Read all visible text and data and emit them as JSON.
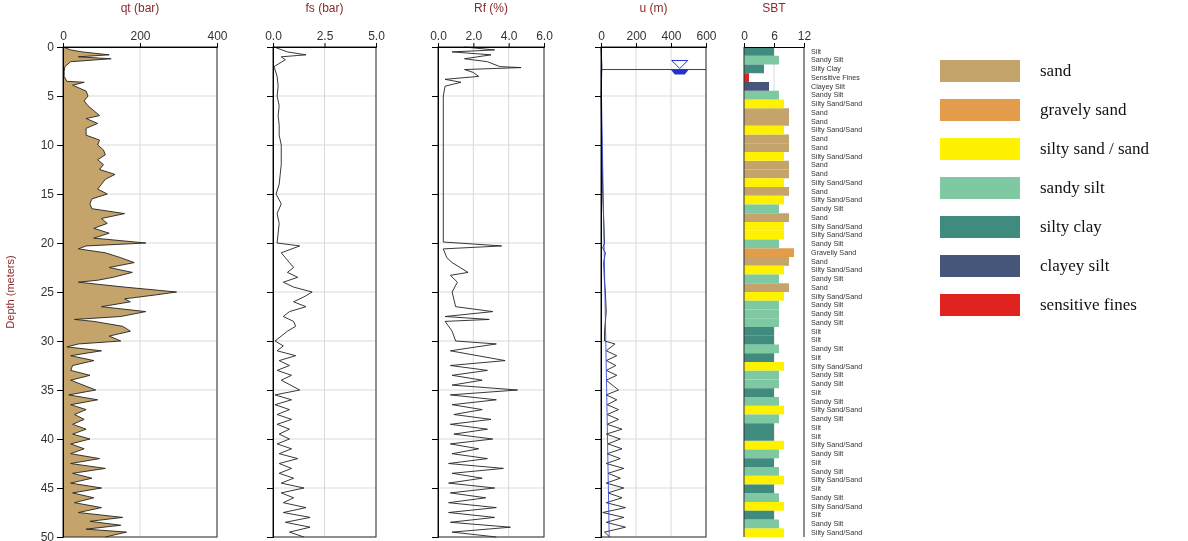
{
  "chart_data": [
    {
      "type": "line",
      "title": "qt (bar)",
      "ylabel": "Depth (meters)",
      "xlim": [
        0,
        400
      ],
      "xticks": [
        0,
        200,
        400
      ],
      "ylim": [
        50,
        0
      ],
      "yticks": [
        0,
        5,
        10,
        15,
        20,
        25,
        30,
        35,
        40,
        45,
        50
      ],
      "grid": true,
      "series": [
        {
          "color": "#222222",
          "x": [
            0,
            20,
            50,
            120,
            40,
            125,
            20,
            5,
            3,
            3,
            10,
            55,
            25,
            60,
            65,
            55,
            65,
            80,
            95,
            60,
            90,
            60,
            60,
            95,
            90,
            105,
            110,
            90,
            105,
            95,
            135,
            110,
            100,
            90,
            115,
            75,
            70,
            75,
            160,
            100,
            115,
            80,
            120,
            80,
            215,
            60,
            40,
            110,
            150,
            185,
            120,
            180,
            130,
            90,
            40,
            160,
            295,
            240,
            160,
            175,
            100,
            215,
            150,
            30,
            80,
            155,
            175,
            120,
            150,
            40,
            10,
            100,
            20,
            80,
            25,
            20,
            70,
            20,
            85,
            15,
            90,
            20,
            60,
            30,
            55,
            25,
            60,
            25,
            70,
            20,
            55,
            20,
            95,
            20,
            110,
            25,
            75,
            20,
            100,
            25,
            80,
            30,
            100,
            40,
            155,
            70,
            150,
            60,
            165,
            110
          ],
          "values": [
            0,
            0.3,
            0.5,
            0.8,
            1,
            1.2,
            1.5,
            2,
            2.5,
            3,
            3.5,
            3.6,
            3.9,
            4.5,
            5,
            5.5,
            6,
            6.5,
            7,
            7.3,
            7.8,
            8.3,
            9,
            9.5,
            10,
            10.5,
            11,
            11.5,
            12,
            12.5,
            13,
            13.5,
            14,
            14.5,
            15,
            15.5,
            16,
            16.5,
            17,
            17.5,
            18,
            18.5,
            19,
            19.5,
            20,
            20.3,
            20.6,
            21,
            21.5,
            22,
            22.5,
            23,
            23.5,
            23.8,
            24,
            24.5,
            25,
            25.3,
            25.7,
            26,
            26.5,
            27,
            27.5,
            27.8,
            28,
            28.5,
            29,
            29.5,
            30,
            30.3,
            30.6,
            31,
            31.5,
            32,
            32.5,
            33,
            33.5,
            34,
            35,
            35.5,
            36,
            36.5,
            37,
            37.5,
            38,
            38.5,
            39,
            39.5,
            40,
            40.5,
            41,
            41.5,
            42,
            42.5,
            43,
            43.5,
            44,
            44.5,
            45,
            45.5,
            46,
            46.5,
            47,
            47.5,
            48,
            48.4,
            48.8,
            49.2,
            49.5,
            50
          ]
        }
      ]
    },
    {
      "type": "line",
      "title": "fs (bar)",
      "xlim": [
        0,
        5
      ],
      "xticks": [
        {
          "value": 0,
          "label": "0.0"
        },
        {
          "value": 2.5,
          "label": "2.5"
        },
        {
          "value": 5,
          "label": "5.0"
        }
      ],
      "ylim": [
        50,
        0
      ],
      "yticks": [
        0,
        5,
        10,
        15,
        20,
        25,
        30,
        35,
        40,
        45,
        50
      ],
      "tick_labels": "x",
      "grid": true,
      "series": [
        {
          "color": "#222222",
          "x": [
            0.05,
            0.7,
            1.6,
            0.4,
            0.6,
            0.05,
            0.2,
            0.25,
            0.2,
            0.3,
            0.25,
            0.3,
            0.3,
            0.4,
            0.4,
            0.4,
            0.35,
            0.3,
            0.15,
            0.4,
            0.2,
            0.3,
            0.25,
            0.2,
            1.3,
            0.4,
            0.6,
            0.8,
            1.0,
            0.7,
            1.2,
            0.5,
            1.0,
            1.9,
            1.5,
            1.0,
            1.6,
            0.8,
            0.5,
            1.0,
            1.1,
            0.7,
            0.1,
            0.5,
            0.2,
            1.1,
            0.3,
            0.8,
            0.2,
            0.9,
            0.4,
            1.3,
            0.1,
            0.9,
            0.1,
            0.8,
            0.2,
            0.9,
            0.2,
            0.8,
            0.3,
            0.8,
            0.2,
            0.9,
            0.3,
            1.2,
            0.3,
            0.9,
            0.3,
            1.0,
            0.4,
            1.5,
            0.4,
            1.0,
            0.5,
            1.6,
            0.5,
            1.8,
            0.6,
            1.8,
            0.8,
            1.5
          ],
          "values": [
            0,
            0.5,
            0.8,
            1,
            1.3,
            2,
            3,
            4,
            5,
            6,
            7,
            8,
            9,
            10,
            11,
            12,
            13,
            14,
            15,
            16,
            17,
            18,
            19,
            20,
            20.3,
            21,
            21.5,
            22,
            22.5,
            23,
            23.5,
            24,
            24.5,
            25,
            25.5,
            26,
            26.5,
            27,
            27.5,
            28,
            28.5,
            29,
            30,
            30.5,
            31,
            31.5,
            32,
            32.5,
            33,
            33.5,
            34,
            35,
            35.5,
            36,
            36.5,
            37,
            37.5,
            38,
            38.5,
            39,
            39.5,
            40,
            40.5,
            41,
            41.5,
            42,
            42.5,
            43,
            43.5,
            44,
            44.5,
            45,
            45.5,
            46,
            46.5,
            47,
            47.5,
            48,
            48.5,
            49,
            49.5,
            50
          ]
        }
      ]
    },
    {
      "type": "line",
      "title": "Rf (%)",
      "xlim": [
        0,
        6
      ],
      "xticks": [
        {
          "value": 0,
          "label": "0.0"
        },
        {
          "value": 2,
          "label": "2.0"
        },
        {
          "value": 4,
          "label": "4.0"
        },
        {
          "value": 6,
          "label": "6.0"
        }
      ],
      "ylim": [
        50,
        0
      ],
      "yticks": [
        0,
        5,
        10,
        15,
        20,
        25,
        30,
        35,
        40,
        45,
        50
      ],
      "tick_labels": "x",
      "grid": true,
      "series": [
        {
          "color": "#222222",
          "x": [
            1.5,
            3.2,
            0.8,
            3.0,
            1.5,
            2.8,
            3.5,
            4.7,
            1.5,
            2.0,
            2.3,
            0.4,
            1.3,
            0.4,
            0.3,
            0.3,
            0.3,
            0.3,
            3.6,
            0.3,
            0.5,
            0.8,
            1.7,
            0.7,
            1.1,
            0.8,
            1.0,
            3.1,
            0.4,
            2.9,
            0.4,
            0.8,
            1.0,
            3.3,
            0.7,
            3.8,
            0.7,
            2.8,
            0.8,
            2.5,
            0.8,
            4.5,
            0.7,
            3.3,
            0.8,
            2.5,
            0.9,
            3.0,
            0.7,
            2.8,
            0.9,
            3.1,
            0.7,
            2.3,
            0.8,
            2.8,
            0.6,
            3.7,
            0.8,
            2.5,
            0.6,
            3.2,
            0.7,
            2.7,
            0.6,
            3.3,
            0.6,
            3.2,
            0.7,
            4.1,
            0.8,
            3.3
          ],
          "values": [
            0,
            0.3,
            0.5,
            0.8,
            1.2,
            1.5,
            2,
            2.1,
            2.3,
            2.6,
            3,
            3.3,
            3.6,
            4,
            5,
            10,
            15,
            19.9,
            20.3,
            20.6,
            21.5,
            22,
            23,
            23.3,
            24,
            25,
            26.5,
            27,
            27.5,
            27.8,
            28,
            29,
            30,
            30.3,
            31,
            32,
            32.5,
            33,
            33.5,
            34,
            34.5,
            35,
            35.5,
            36,
            36.5,
            37,
            37.5,
            38,
            38.5,
            39,
            39.5,
            40,
            40.5,
            41,
            41.5,
            42,
            42.5,
            43,
            43.5,
            44,
            44.5,
            45,
            45.5,
            46,
            46.5,
            47,
            47.5,
            48,
            48.5,
            49,
            49.5,
            50
          ]
        }
      ]
    },
    {
      "type": "line",
      "title": "u (m)",
      "xlim": [
        0,
        600
      ],
      "xticks": [
        0,
        200,
        400,
        600
      ],
      "ylim": [
        50,
        0
      ],
      "yticks": [
        0,
        5,
        10,
        15,
        20,
        25,
        30,
        35,
        40,
        45,
        50
      ],
      "tick_labels": "x",
      "grid": true,
      "ref_lines": [
        {
          "axis": "y",
          "value": 2.3,
          "color": "#2233cc"
        }
      ],
      "series": [
        {
          "color": "#222222",
          "x": [
            0,
            5,
            0,
            5,
            10,
            20,
            10,
            25,
            15,
            20,
            25,
            30,
            20,
            20,
            80,
            30,
            90,
            30,
            85,
            30,
            90,
            30,
            100,
            30,
            90,
            35,
            100,
            35,
            100,
            35,
            120,
            30,
            110,
            40,
            120,
            35,
            110,
            30,
            130,
            40,
            110,
            30,
            130,
            40,
            120,
            30,
            140,
            10,
            130,
            30,
            140,
            20,
            50
          ],
          "values": [
            0,
            2,
            5,
            10,
            15,
            20,
            20.5,
            21,
            22,
            24,
            25,
            27,
            29,
            30,
            30.3,
            31,
            31.5,
            32,
            32.5,
            33,
            33.5,
            34,
            35,
            35.5,
            36,
            36.5,
            37,
            37.5,
            38,
            38.5,
            39,
            39.5,
            40,
            40.5,
            41,
            41.5,
            42,
            42.5,
            43,
            43.5,
            44,
            44.5,
            45,
            45.5,
            46,
            46.5,
            47,
            47.5,
            48,
            48.5,
            49,
            49.5,
            50
          ]
        },
        {
          "color": "#3a4fd8",
          "x": [
            0,
            47
          ],
          "values": [
            2.3,
            50
          ]
        }
      ]
    },
    {
      "type": "bar",
      "orientation": "horizontal",
      "stacked": true,
      "title": "SBT",
      "xlim": [
        0,
        12
      ],
      "xticks": [
        0,
        6,
        12
      ],
      "grid": "x",
      "legend": "right",
      "categories": [
        "Silt",
        "Sandy Silt",
        "Silty Clay",
        "Sensitive Fines",
        "Clayey Silt",
        "Sandy Silt",
        "Silty Sand/Sand",
        "Sand",
        "Sand",
        "Silty Sand/Sand",
        "Sand",
        "Sand",
        "Silty Sand/Sand",
        "Sand",
        "Sand",
        "Silty Sand/Sand",
        "Sand",
        "Silty Sand/Sand",
        "Sandy Silt",
        "Sand",
        "Silty Sand/Sand",
        "Silty Sand/Sand",
        "Sandy Silt",
        "Gravelly Sand",
        "Sand",
        "Silty Sand/Sand",
        "Sandy Silt",
        "Sand",
        "Silty Sand/Sand",
        "Sandy Silt",
        "Sandy Silt",
        "Sandy Silt",
        "Silt",
        "Silt",
        "Sandy Silt",
        "Silt",
        "Silty Sand/Sand",
        "Sandy Silt",
        "Sandy Silt",
        "Silt",
        "Sandy Silt",
        "Silty Sand/Sand",
        "Sandy Silt",
        "Silt",
        "Silt",
        "Silty Sand/Sand",
        "Sandy Silt",
        "Silt",
        "Sandy Silt",
        "Silty Sand/Sand",
        "Silt",
        "Sandy Silt",
        "Silty Sand/Sand",
        "Silt",
        "Sandy Silt",
        "Silty Sand/Sand"
      ],
      "series": [
        {
          "name": "sand",
          "color": "#c4a46a",
          "values": [
            null,
            null,
            null,
            null,
            null,
            null,
            null,
            9,
            9,
            null,
            9,
            9,
            null,
            9,
            9,
            null,
            9,
            null,
            null,
            9,
            null,
            null,
            null,
            null,
            9,
            null,
            null,
            9,
            null,
            null,
            null,
            null,
            null,
            null,
            null,
            null,
            null,
            null,
            null,
            null,
            null,
            null,
            null,
            null,
            null,
            null,
            null,
            null,
            null,
            null,
            null,
            null,
            null,
            null,
            null,
            null
          ]
        },
        {
          "name": "gravely sand",
          "color": "#e39c4c",
          "values": [
            null,
            null,
            null,
            null,
            null,
            null,
            null,
            null,
            null,
            null,
            null,
            null,
            null,
            null,
            null,
            null,
            null,
            null,
            null,
            null,
            null,
            null,
            null,
            10,
            null,
            null,
            null,
            null,
            null,
            null,
            null,
            null,
            null,
            null,
            null,
            null,
            null,
            null,
            null,
            null,
            null,
            null,
            null,
            null,
            null,
            null,
            null,
            null,
            null,
            null,
            null,
            null,
            null,
            null,
            null,
            null
          ]
        },
        {
          "name": "silty sand / sand",
          "color": "#fff200",
          "values": [
            null,
            null,
            null,
            null,
            null,
            null,
            8,
            null,
            null,
            8,
            null,
            null,
            8,
            null,
            null,
            8,
            null,
            8,
            null,
            null,
            8,
            8,
            null,
            null,
            null,
            8,
            null,
            null,
            8,
            null,
            null,
            null,
            null,
            null,
            null,
            null,
            8,
            null,
            null,
            null,
            null,
            8,
            null,
            null,
            null,
            8,
            null,
            null,
            null,
            8,
            null,
            null,
            8,
            null,
            null,
            8
          ]
        },
        {
          "name": "sandy silt",
          "color": "#7fc9a2",
          "values": [
            null,
            7,
            null,
            null,
            null,
            7,
            null,
            null,
            null,
            null,
            null,
            null,
            null,
            null,
            null,
            null,
            null,
            null,
            7,
            null,
            null,
            null,
            7,
            null,
            null,
            null,
            7,
            null,
            null,
            7,
            7,
            7,
            null,
            null,
            7,
            null,
            null,
            7,
            7,
            null,
            7,
            null,
            7,
            null,
            null,
            null,
            7,
            null,
            7,
            null,
            null,
            7,
            null,
            null,
            7,
            null
          ]
        },
        {
          "name": "silty clay",
          "color": "#3f8b7d",
          "values": [
            6,
            null,
            4,
            null,
            null,
            null,
            null,
            null,
            null,
            null,
            null,
            null,
            null,
            null,
            null,
            null,
            null,
            null,
            null,
            null,
            null,
            null,
            null,
            null,
            null,
            null,
            null,
            null,
            null,
            null,
            null,
            null,
            6,
            6,
            null,
            6,
            null,
            null,
            null,
            6,
            null,
            null,
            null,
            6,
            6,
            null,
            null,
            6,
            null,
            null,
            6,
            null,
            null,
            6,
            null,
            null
          ]
        },
        {
          "name": "clayey silt",
          "color": "#46567b",
          "values": [
            null,
            null,
            null,
            null,
            5,
            null,
            null,
            null,
            null,
            null,
            null,
            null,
            null,
            null,
            null,
            null,
            null,
            null,
            null,
            null,
            null,
            null,
            null,
            null,
            null,
            null,
            null,
            null,
            null,
            null,
            null,
            null,
            null,
            null,
            null,
            null,
            null,
            null,
            null,
            null,
            null,
            null,
            null,
            null,
            null,
            null,
            null,
            null,
            null,
            null,
            null,
            null,
            null,
            null,
            null,
            null
          ]
        },
        {
          "name": "sensitive fines",
          "color": "#e0231f",
          "values": [
            null,
            null,
            null,
            1,
            null,
            null,
            null,
            null,
            null,
            null,
            null,
            null,
            null,
            null,
            null,
            null,
            null,
            null,
            null,
            null,
            null,
            null,
            null,
            null,
            null,
            null,
            null,
            null,
            null,
            null,
            null,
            null,
            null,
            null,
            null,
            null,
            null,
            null,
            null,
            null,
            null,
            null,
            null,
            null,
            null,
            null,
            null,
            null,
            null,
            null,
            null,
            null,
            null,
            null,
            null,
            null
          ]
        }
      ]
    }
  ]
}
